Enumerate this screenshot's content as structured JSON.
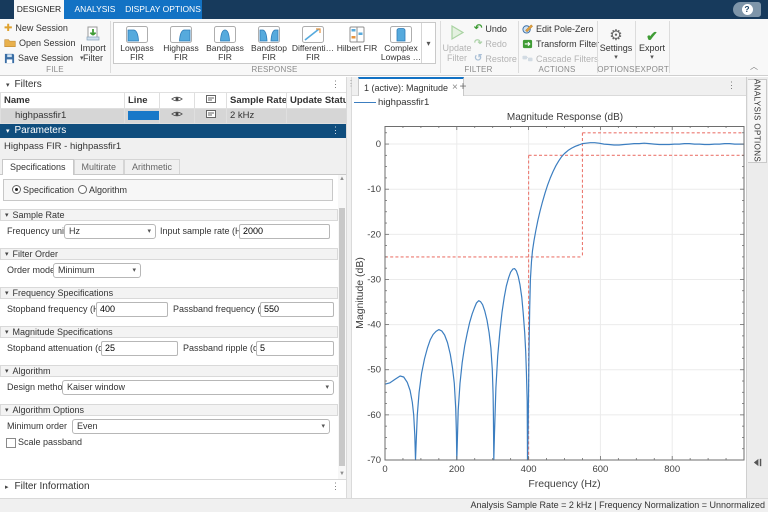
{
  "titlebar": {
    "tabs": [
      {
        "label": "DESIGNER"
      },
      {
        "label": "ANALYSIS"
      },
      {
        "label": "DISPLAY OPTIONS"
      }
    ],
    "help": "?"
  },
  "icons": {
    "dropdown": "▾",
    "collapse_down": "▾",
    "collapse_right": "▸",
    "menu_dots": "⋮",
    "close": "×",
    "add": "+",
    "gear": "⚙",
    "check": "✔",
    "undo": "↶",
    "redo": "↷",
    "restore": "↺",
    "new_plus": "✚",
    "chevron_up": "︿",
    "scroll_up": "▲",
    "scroll_down": "▼"
  },
  "ribbon": {
    "file": {
      "label": "FILE",
      "new_session": "New Session",
      "open_session": "Open Session",
      "save_session": "Save Session",
      "import_l1": "Import",
      "import_l2": "Filter"
    },
    "response": {
      "label": "RESPONSE",
      "gallery": [
        {
          "l1": "Lowpass",
          "l2": "FIR"
        },
        {
          "l1": "Highpass",
          "l2": "FIR"
        },
        {
          "l1": "Bandpass",
          "l2": "FIR"
        },
        {
          "l1": "Bandstop",
          "l2": "FIR"
        },
        {
          "l1": "Differenti…",
          "l2": "FIR"
        },
        {
          "l1": "Hilbert FIR",
          "l2": ""
        },
        {
          "l1": "Complex",
          "l2": "Lowpas …"
        }
      ]
    },
    "filter": {
      "label": "FILTER",
      "update_l1": "Update",
      "update_l2": "Filter",
      "undo": "Undo",
      "redo": "Redo",
      "restore": "Restore"
    },
    "actions": {
      "label": "ACTIONS",
      "edit_pole_zero": "Edit Pole-Zero",
      "transform_filter": "Transform Filter",
      "cascade_filters": "Cascade Filters"
    },
    "options": {
      "label": "OPTIONS",
      "settings": "Settings"
    },
    "export": {
      "label": "EXPORT",
      "export": "Export"
    }
  },
  "filters_panel": {
    "title": "Filters",
    "col_name": "Name",
    "col_line": "Line",
    "col_sample_rate": "Sample Rate",
    "col_update_status": "Update Status",
    "row": {
      "name": "highpassfir1",
      "sample_rate": "2 kHz",
      "update_status": "",
      "line_color": "#1878c8"
    }
  },
  "parameters": {
    "title": "Parameters",
    "subtitle": "Highpass FIR - highpassfir1",
    "tabs": [
      {
        "label": "Specifications"
      },
      {
        "label": "Multirate"
      },
      {
        "label": "Arithmetic"
      }
    ],
    "radio_specification": "Specification",
    "radio_algorithm": "Algorithm",
    "sample_rate": {
      "header": "Sample Rate",
      "units_label": "Frequency units",
      "units_value": "Hz",
      "rate_label": "Input sample rate (Hz)",
      "rate_value": "2000"
    },
    "filter_order": {
      "header": "Filter Order",
      "mode_label": "Order mode",
      "mode_value": "Minimum"
    },
    "frequency_specs": {
      "header": "Frequency Specifications",
      "stopband_label": "Stopband frequency (Hz)",
      "stopband_value": "400",
      "passband_label": "Passband frequency (Hz)",
      "passband_value": "550"
    },
    "magnitude_specs": {
      "header": "Magnitude Specifications",
      "attenuation_label": "Stopband attenuation (dB)",
      "attenuation_value": "25",
      "ripple_label": "Passband ripple (dB)",
      "ripple_value": "5"
    },
    "algorithm": {
      "header": "Algorithm",
      "method_label": "Design method",
      "method_value": "Kaiser window"
    },
    "algorithm_options": {
      "header": "Algorithm Options",
      "min_order_label": "Minimum order",
      "min_order_value": "Even",
      "scale_passband_label": "Scale passband",
      "scale_passband_checked": false
    },
    "filter_information": {
      "title": "Filter Information"
    }
  },
  "plot": {
    "doc_tab": "1 (active): Magnitude",
    "legend": "highpassfir1",
    "side_tab": "ANALYSIS OPTIONS"
  },
  "statusbar": {
    "text": "Analysis Sample Rate = 2 kHz | Frequency Normalization = Unnormalized"
  },
  "colors": {
    "titlebar_navy": "#173a5c",
    "titlebar_blue": "#1272c4",
    "params_header_blue": "#0f4d7d",
    "curve_blue": "#3c7ec0",
    "mask_red": "#ec7a72",
    "line_swatch_blue": "#1878c8",
    "selected_row_gray": "#d6d6d6",
    "enabled_green": "#3f9c35"
  },
  "chart_data": {
    "type": "line",
    "title": "Magnitude Response (dB)",
    "xlabel": "Frequency (Hz)",
    "ylabel": "Magnitude (dB)",
    "xlim": [
      0,
      1000
    ],
    "ylim": [
      -70,
      4
    ],
    "xticks": [
      0,
      200,
      400,
      600,
      800
    ],
    "yticks": [
      0,
      -10,
      -20,
      -30,
      -40,
      -50,
      -60,
      -70
    ],
    "grid": true,
    "legend_position": "top-left",
    "series": [
      {
        "name": "highpassfir1",
        "color": "#3c7ec0",
        "points": [
          [
            0,
            -53.2
          ],
          [
            14,
            -52.9
          ],
          [
            28,
            -52.1
          ],
          [
            42,
            -51.4
          ],
          [
            52,
            -51.6
          ],
          [
            62,
            -52.8
          ],
          [
            70,
            -54.6
          ],
          [
            76,
            -57.2
          ],
          [
            80,
            -60
          ],
          [
            83,
            -64.5
          ],
          [
            85,
            -75
          ],
          [
            87,
            -66
          ],
          [
            90,
            -60
          ],
          [
            95,
            -55
          ],
          [
            102,
            -50.8
          ],
          [
            110,
            -47.6
          ],
          [
            118,
            -45.2
          ],
          [
            126,
            -43.4
          ],
          [
            134,
            -42.2
          ],
          [
            142,
            -41.5
          ],
          [
            150,
            -41.1
          ],
          [
            158,
            -41.4
          ],
          [
            166,
            -42.3
          ],
          [
            174,
            -44
          ],
          [
            182,
            -46.6
          ],
          [
            188,
            -49.6
          ],
          [
            193,
            -53
          ],
          [
            197,
            -58.5
          ],
          [
            199,
            -64
          ],
          [
            200,
            -75
          ],
          [
            201,
            -67
          ],
          [
            204,
            -59
          ],
          [
            209,
            -53
          ],
          [
            215,
            -48.4
          ],
          [
            222,
            -44.7
          ],
          [
            229,
            -41.9
          ],
          [
            236,
            -39.5
          ],
          [
            243,
            -37.6
          ],
          [
            249,
            -36.3
          ],
          [
            255,
            -35.2
          ],
          [
            261,
            -34.7
          ],
          [
            266,
            -34.9
          ],
          [
            272,
            -35.6
          ],
          [
            278,
            -37
          ],
          [
            284,
            -39
          ],
          [
            290,
            -41.8
          ],
          [
            295,
            -45.2
          ],
          [
            299,
            -50
          ],
          [
            301,
            -55.5
          ],
          [
            302,
            -60
          ],
          [
            303,
            -75
          ],
          [
            305,
            -64
          ],
          [
            309,
            -54
          ],
          [
            314,
            -47
          ],
          [
            320,
            -41.5
          ],
          [
            326,
            -37.3
          ],
          [
            332,
            -34
          ],
          [
            338,
            -31.5
          ],
          [
            344,
            -29.7
          ],
          [
            350,
            -28.4
          ],
          [
            356,
            -27.7
          ],
          [
            361,
            -27.6
          ],
          [
            366,
            -28.1
          ],
          [
            371,
            -29.3
          ],
          [
            376,
            -31.2
          ],
          [
            381,
            -34
          ],
          [
            385,
            -37.4
          ],
          [
            389,
            -41.8
          ],
          [
            392,
            -46
          ],
          [
            394,
            -50.5
          ],
          [
            396,
            -57
          ],
          [
            397,
            -75
          ],
          [
            399,
            -62
          ],
          [
            401,
            -46
          ],
          [
            403,
            -36.5
          ],
          [
            405,
            -30
          ],
          [
            408,
            -26
          ],
          [
            411,
            -23.6
          ],
          [
            415,
            -21.4
          ],
          [
            420,
            -19.2
          ],
          [
            426,
            -16.9
          ],
          [
            432,
            -14.8
          ],
          [
            439,
            -12.7
          ],
          [
            446,
            -10.8
          ],
          [
            453,
            -9.1
          ],
          [
            460,
            -7.6
          ],
          [
            468,
            -6.1
          ],
          [
            476,
            -4.8
          ],
          [
            484,
            -3.7
          ],
          [
            492,
            -2.8
          ],
          [
            500,
            -2.1
          ],
          [
            510,
            -1.4
          ],
          [
            520,
            -0.9
          ],
          [
            530,
            -0.5
          ],
          [
            540,
            -0.2
          ],
          [
            550,
            0.1
          ],
          [
            560,
            0.2
          ],
          [
            572,
            0.3
          ],
          [
            584,
            0.3
          ],
          [
            596,
            0.2
          ],
          [
            610,
            0
          ],
          [
            624,
            -0.1
          ],
          [
            638,
            -0.2
          ],
          [
            652,
            -0.2
          ],
          [
            666,
            -0.1
          ],
          [
            680,
            0
          ],
          [
            694,
            0.1
          ],
          [
            708,
            0.1
          ],
          [
            722,
            0.2
          ],
          [
            736,
            0.1
          ],
          [
            750,
            0
          ],
          [
            764,
            -0.1
          ],
          [
            778,
            -0.1
          ],
          [
            792,
            -0.1
          ],
          [
            806,
            0
          ],
          [
            820,
            0
          ],
          [
            834,
            0.1
          ],
          [
            848,
            0.1
          ],
          [
            862,
            0
          ],
          [
            876,
            0
          ],
          [
            890,
            -0.1
          ],
          [
            904,
            -0.1
          ],
          [
            918,
            0
          ],
          [
            932,
            0
          ],
          [
            946,
            0.1
          ],
          [
            960,
            0.1
          ],
          [
            974,
            0
          ],
          [
            988,
            0
          ],
          [
            1000,
            0
          ]
        ]
      }
    ],
    "spec_mask": {
      "color": "#ec7a72",
      "style": "dashed",
      "stopband_frequency_hz": 400,
      "passband_frequency_hz": 550,
      "stopband_attenuation_db": 25,
      "passband_ripple_db": 5,
      "segments": [
        [
          0,
          -25,
          550,
          -25
        ],
        [
          400,
          -2.5,
          1000,
          -2.5
        ],
        [
          550,
          2.5,
          1000,
          2.5
        ],
        [
          400,
          -2.5,
          400,
          -70
        ],
        [
          550,
          2.5,
          550,
          -25
        ]
      ]
    }
  }
}
